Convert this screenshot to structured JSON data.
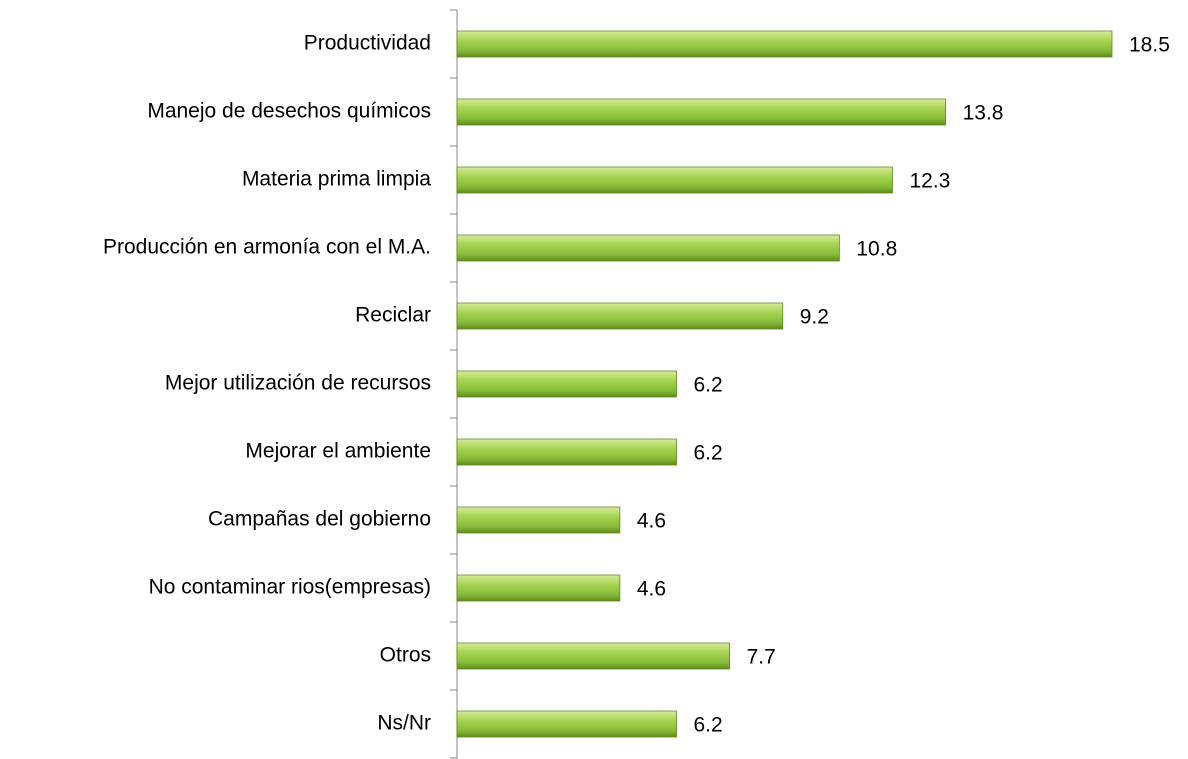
{
  "chart_data": {
    "type": "bar",
    "orientation": "horizontal",
    "categories": [
      "Productividad",
      "Manejo de desechos químicos",
      "Materia prima limpia",
      "Producción en armonía con el M.A.",
      "Reciclar",
      "Mejor utilización de recursos",
      "Mejorar el ambiente",
      "Campañas del gobierno",
      "No contaminar rios(empresas)",
      "Otros",
      "Ns/Nr"
    ],
    "values": [
      18.5,
      13.8,
      12.3,
      10.8,
      9.2,
      6.2,
      6.2,
      4.6,
      4.6,
      7.7,
      6.2
    ],
    "color": "#92c83e"
  }
}
